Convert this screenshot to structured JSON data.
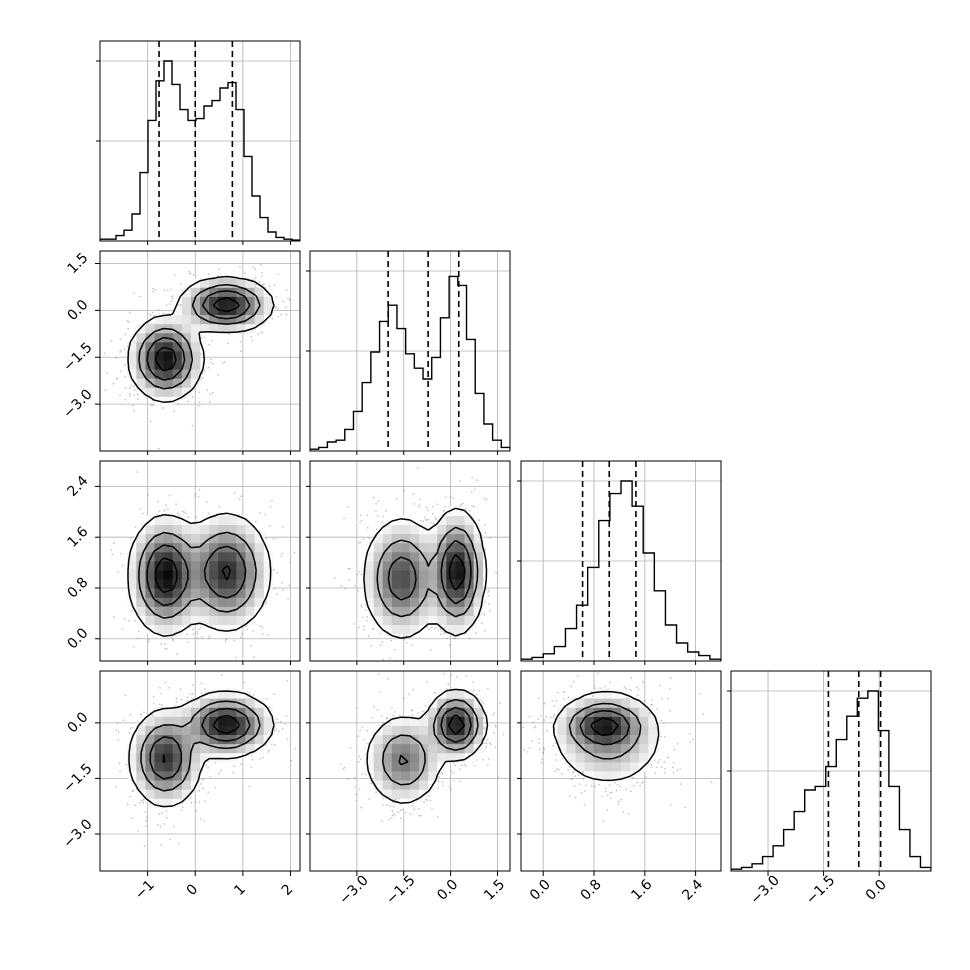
{
  "chart_data": {
    "type": "corner",
    "grid": true,
    "params": [
      {
        "ticks": [
          -1,
          0,
          1,
          2
        ],
        "tick_labels": [
          "−1",
          "0",
          "1",
          "2"
        ],
        "xlim": [
          -2.0,
          2.2
        ],
        "hist_density": [
          0.01,
          0.01,
          0.03,
          0.06,
          0.15,
          0.38,
          0.67,
          0.89,
          1.0,
          0.87,
          0.73,
          0.67,
          0.68,
          0.75,
          0.78,
          0.85,
          0.88,
          0.73,
          0.47,
          0.25,
          0.13,
          0.05,
          0.02,
          0.01,
          0.005
        ],
        "quantiles": [
          -0.76,
          0.0,
          0.78
        ]
      },
      {
        "ticks": [
          -3.0,
          -1.5,
          0.0,
          1.5
        ],
        "tick_labels": [
          "−3.0",
          "−1.5",
          "0.0",
          "1.5"
        ],
        "xlim": [
          -4.5,
          1.9
        ],
        "hist_density": [
          0.01,
          0.02,
          0.05,
          0.06,
          0.12,
          0.22,
          0.38,
          0.55,
          0.72,
          0.81,
          0.68,
          0.54,
          0.46,
          0.4,
          0.52,
          0.74,
          0.97,
          0.92,
          0.62,
          0.32,
          0.15,
          0.06,
          0.02
        ],
        "quantiles": [
          -2.0,
          -0.72,
          0.26
        ]
      },
      {
        "ticks": [
          0.0,
          0.8,
          1.6,
          2.4
        ],
        "tick_labels": [
          "0.0",
          "0.8",
          "1.6",
          "2.4"
        ],
        "xlim": [
          -0.35,
          2.8
        ],
        "hist_density": [
          0.01,
          0.02,
          0.04,
          0.08,
          0.18,
          0.31,
          0.52,
          0.78,
          0.93,
          1.0,
          0.86,
          0.6,
          0.39,
          0.2,
          0.1,
          0.05,
          0.03,
          0.01
        ],
        "quantiles": [
          0.62,
          1.04,
          1.46
        ]
      },
      {
        "ticks": [
          -3.0,
          -1.5,
          0.0
        ],
        "tick_labels": [
          "−3.0",
          "−1.5",
          "0.0"
        ],
        "xlim": [
          -4.0,
          1.4
        ],
        "hist_density": [
          0.01,
          0.02,
          0.04,
          0.08,
          0.14,
          0.23,
          0.33,
          0.45,
          0.47,
          0.58,
          0.73,
          0.86,
          0.96,
          1.0,
          0.78,
          0.47,
          0.23,
          0.08,
          0.02
        ],
        "quantiles": [
          -1.37,
          -0.55,
          0.04
        ]
      }
    ],
    "hist_y_ticks": [
      0.5,
      0.1
    ],
    "pair_density": [
      {
        "col": 0,
        "row": 1,
        "modes": [
          {
            "mx": -0.62,
            "my": -1.55,
            "sx": 0.33,
            "sy": 0.57,
            "w": 0.55
          },
          {
            "mx": 0.65,
            "my": 0.18,
            "sx": 0.42,
            "sy": 0.37,
            "w": 0.45
          }
        ]
      },
      {
        "col": 0,
        "row": 2,
        "modes": [
          {
            "mx": -0.62,
            "my": 1.0,
            "sx": 0.33,
            "sy": 0.4,
            "w": 0.5
          },
          {
            "mx": 0.65,
            "my": 1.05,
            "sx": 0.4,
            "sy": 0.4,
            "w": 0.5
          }
        ]
      },
      {
        "col": 0,
        "row": 3,
        "modes": [
          {
            "mx": -0.62,
            "my": -0.95,
            "sx": 0.33,
            "sy": 0.57,
            "w": 0.5
          },
          {
            "mx": 0.65,
            "my": -0.05,
            "sx": 0.42,
            "sy": 0.37,
            "w": 0.5
          }
        ]
      },
      {
        "col": 1,
        "row": 2,
        "modes": [
          {
            "mx": -1.55,
            "my": 0.95,
            "sx": 0.55,
            "sy": 0.42,
            "w": 0.5
          },
          {
            "mx": 0.2,
            "my": 1.05,
            "sx": 0.38,
            "sy": 0.42,
            "w": 0.5
          }
        ]
      },
      {
        "col": 1,
        "row": 3,
        "modes": [
          {
            "mx": -1.5,
            "my": -1.0,
            "sx": 0.55,
            "sy": 0.55,
            "w": 0.5
          },
          {
            "mx": 0.18,
            "my": -0.05,
            "sx": 0.4,
            "sy": 0.4,
            "w": 0.5
          }
        ]
      },
      {
        "col": 2,
        "row": 3,
        "modes": [
          {
            "mx": 1.02,
            "my": -0.4,
            "sx": 0.4,
            "sy": 0.6,
            "w": 0.6
          },
          {
            "mx": 0.95,
            "my": -0.05,
            "sx": 0.3,
            "sy": 0.3,
            "w": 0.4
          }
        ]
      }
    ]
  }
}
